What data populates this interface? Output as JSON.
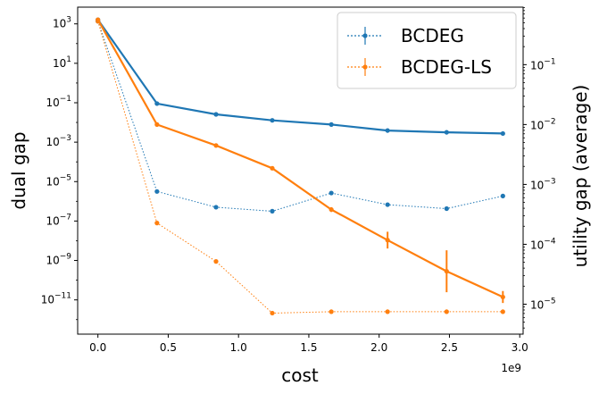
{
  "chart_data": {
    "type": "line",
    "xlabel": "cost",
    "ylabel_left": "dual gap",
    "ylabel_right": "utility gap (average)",
    "x_offset_label": "1e9",
    "xlim": [
      -0.144,
      3.024
    ],
    "x_ticks": [
      0.0,
      0.5,
      1.0,
      1.5,
      2.0,
      2.5,
      3.0
    ],
    "x_tick_labels": [
      "0.0",
      "0.5",
      "1.0",
      "1.5",
      "2.0",
      "2.5",
      "3.0"
    ],
    "left_ylim_log10": [
      -12.737,
      3.848
    ],
    "left_ticks_log10": [
      3,
      1,
      -1,
      -3,
      -5,
      -7,
      -9,
      -11
    ],
    "left_tick_labels": [
      {
        "base": "10",
        "exp": "3"
      },
      {
        "base": "10",
        "exp": "1"
      },
      {
        "base": "10",
        "exp": "−1"
      },
      {
        "base": "10",
        "exp": "−3"
      },
      {
        "base": "10",
        "exp": "−5"
      },
      {
        "base": "10",
        "exp": "−7"
      },
      {
        "base": "10",
        "exp": "−9"
      },
      {
        "base": "10",
        "exp": "−11"
      }
    ],
    "right_ylim_log10": [
      -5.5,
      -0.04
    ],
    "right_ticks_log10": [
      -1,
      -2,
      -3,
      -4,
      -5
    ],
    "right_tick_labels": [
      {
        "base": "10",
        "exp": "−1"
      },
      {
        "base": "10",
        "exp": "−2"
      },
      {
        "base": "10",
        "exp": "−3"
      },
      {
        "base": "10",
        "exp": "−4"
      },
      {
        "base": "10",
        "exp": "−5"
      }
    ],
    "x": [
      0.0,
      0.42,
      0.84,
      1.24,
      1.66,
      2.06,
      2.48,
      2.88
    ],
    "series": [
      {
        "name": "BCDEG",
        "axis": "left",
        "style": "dotted",
        "color": "#1f77b4",
        "log10_values": [
          3.13,
          -5.5,
          -6.3,
          -6.5,
          -5.58,
          -6.17,
          -6.37,
          -5.73
        ],
        "log10_err": [
          0,
          0,
          0,
          0,
          0,
          0,
          0,
          0
        ]
      },
      {
        "name": "BCDEG-LS",
        "axis": "left",
        "style": "dotted",
        "color": "#ff7f0e",
        "log10_values": [
          3.13,
          -7.1,
          -9.05,
          -11.67,
          -11.6,
          -11.6,
          -11.6,
          -11.6
        ],
        "log10_err": [
          0,
          0,
          0,
          0,
          0,
          0,
          0,
          0
        ]
      },
      {
        "name": "BCDEG",
        "axis": "right",
        "style": "solid",
        "color": "#1f77b4",
        "log10_values": [
          -0.25,
          -1.65,
          -1.83,
          -1.93,
          -2.0,
          -2.1,
          -2.13,
          -2.15
        ],
        "log10_err": [
          0,
          0,
          0,
          0,
          0,
          0,
          0,
          0
        ]
      },
      {
        "name": "BCDEG-LS",
        "axis": "right",
        "style": "solid",
        "color": "#ff7f0e",
        "log10_values": [
          -0.25,
          -2.0,
          -2.35,
          -2.73,
          -3.42,
          -3.93,
          -4.45,
          -4.88
        ],
        "log10_err": [
          0,
          0,
          0,
          0,
          0.04,
          0.14,
          0.35,
          0.1
        ]
      }
    ],
    "legend": {
      "position": "top-right",
      "entries": [
        {
          "label": "BCDEG",
          "color": "#1f77b4"
        },
        {
          "label": "BCDEG-LS",
          "color": "#ff7f0e"
        }
      ]
    }
  }
}
